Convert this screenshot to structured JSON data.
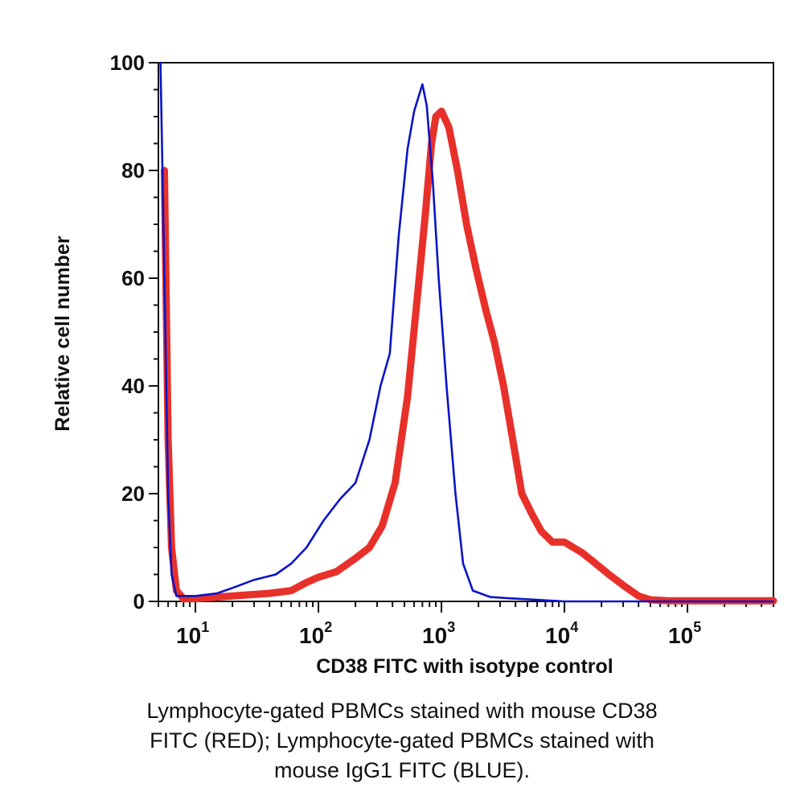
{
  "chart_data": {
    "type": "line",
    "title": "",
    "xlabel": "CD38 FITC with isotype control",
    "ylabel": "Relative cell number",
    "x_scale": "log",
    "xlim": [
      5,
      500000
    ],
    "ylim": [
      0,
      100
    ],
    "grid": false,
    "legend": "none",
    "y_ticks": [
      "0",
      "20",
      "40",
      "60",
      "80",
      "100"
    ],
    "x_ticks": [
      {
        "base": "10",
        "exp": "1",
        "value": 10
      },
      {
        "base": "10",
        "exp": "2",
        "value": 100
      },
      {
        "base": "10",
        "exp": "3",
        "value": 1000
      },
      {
        "base": "10",
        "exp": "4",
        "value": 10000
      },
      {
        "base": "10",
        "exp": "5",
        "value": 100000
      }
    ],
    "series": [
      {
        "color": "#0a14c8",
        "points": [
          [
            5.2,
            100
          ],
          [
            5.6,
            60
          ],
          [
            6,
            20
          ],
          [
            6.4,
            5
          ],
          [
            7,
            1
          ],
          [
            10,
            1
          ],
          [
            15,
            1.5
          ],
          [
            20,
            2.5
          ],
          [
            30,
            4
          ],
          [
            45,
            5
          ],
          [
            60,
            7
          ],
          [
            80,
            10
          ],
          [
            110,
            15
          ],
          [
            150,
            19
          ],
          [
            200,
            22
          ],
          [
            260,
            30
          ],
          [
            320,
            40
          ],
          [
            380,
            46
          ],
          [
            450,
            68
          ],
          [
            530,
            84
          ],
          [
            600,
            91
          ],
          [
            700,
            96
          ],
          [
            760,
            92
          ],
          [
            850,
            78
          ],
          [
            950,
            60
          ],
          [
            1100,
            40
          ],
          [
            1300,
            20
          ],
          [
            1500,
            7
          ],
          [
            1800,
            2
          ],
          [
            2500,
            0.8
          ],
          [
            4000,
            0.5
          ],
          [
            6000,
            0.3
          ],
          [
            10000,
            0
          ],
          [
            500000,
            0
          ]
        ]
      },
      {
        "color": "#e8302a",
        "points": [
          [
            5.6,
            80
          ],
          [
            6,
            30
          ],
          [
            6.4,
            10
          ],
          [
            7,
            2
          ],
          [
            8,
            0.5
          ],
          [
            10,
            0.5
          ],
          [
            20,
            1
          ],
          [
            40,
            1.5
          ],
          [
            60,
            2
          ],
          [
            80,
            3.5
          ],
          [
            100,
            4.5
          ],
          [
            140,
            5.5
          ],
          [
            200,
            8
          ],
          [
            260,
            10
          ],
          [
            330,
            14
          ],
          [
            420,
            22
          ],
          [
            530,
            38
          ],
          [
            640,
            57
          ],
          [
            740,
            72
          ],
          [
            830,
            85
          ],
          [
            900,
            90
          ],
          [
            1000,
            91
          ],
          [
            1150,
            88
          ],
          [
            1350,
            80
          ],
          [
            1600,
            70
          ],
          [
            1900,
            62
          ],
          [
            2300,
            54
          ],
          [
            2700,
            48
          ],
          [
            3200,
            40
          ],
          [
            3800,
            30
          ],
          [
            4500,
            20
          ],
          [
            5500,
            16
          ],
          [
            6500,
            13
          ],
          [
            8000,
            11
          ],
          [
            10000,
            11
          ],
          [
            14000,
            9
          ],
          [
            18000,
            7
          ],
          [
            23000,
            5
          ],
          [
            30000,
            3
          ],
          [
            40000,
            1
          ],
          [
            50000,
            0.3
          ],
          [
            70000,
            0.1
          ],
          [
            500000,
            0.1
          ]
        ]
      }
    ]
  },
  "caption": {
    "line1": "Lymphocyte-gated PBMCs stained with mouse CD38",
    "line2": "FITC (RED); Lymphocyte-gated PBMCs stained with",
    "line3": "mouse IgG1 FITC (BLUE)."
  }
}
